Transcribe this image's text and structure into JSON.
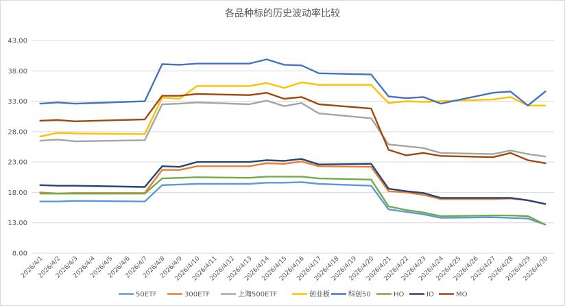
{
  "chart_data": {
    "type": "line",
    "title": "各品种标的历史波动率比较",
    "xlabel": "",
    "ylabel": "",
    "ylim": [
      8,
      43
    ],
    "yticks": [
      "8.00",
      "13.00",
      "18.00",
      "23.00",
      "28.00",
      "33.00",
      "38.00",
      "43.00"
    ],
    "grid": true,
    "legend_position": "bottom",
    "x": [
      "2026/4/1",
      "2026/4/2",
      "2026/4/3",
      "2026/4/4",
      "2026/4/5",
      "2026/4/6",
      "2026/4/7",
      "2026/4/8",
      "2026/4/9",
      "2026/4/10",
      "2026/4/11",
      "2026/4/12",
      "2026/4/13",
      "2026/4/14",
      "2026/4/15",
      "2026/4/16",
      "2026/4/17",
      "2026/4/18",
      "2026/4/19",
      "2026/4/20",
      "2026/4/21",
      "2026/4/22",
      "2026/4/23",
      "2026/4/24",
      "2026/4/25",
      "2026/4/26",
      "2026/4/27",
      "2026/4/28",
      "2026/4/29",
      "2026/4/30"
    ],
    "series": [
      {
        "name": "50ETF",
        "color": "#5b9bd5",
        "values": [
          16.5,
          16.5,
          16.6,
          null,
          null,
          null,
          16.5,
          19.2,
          19.3,
          19.4,
          null,
          null,
          19.4,
          19.6,
          19.6,
          19.7,
          19.4,
          null,
          null,
          19.1,
          15.2,
          14.8,
          14.4,
          13.8,
          null,
          null,
          13.9,
          13.8,
          13.7,
          12.7
        ]
      },
      {
        "name": "300ETF",
        "color": "#ed7d31",
        "values": [
          18.0,
          17.8,
          17.9,
          null,
          null,
          null,
          17.9,
          21.7,
          21.7,
          22.3,
          null,
          null,
          22.3,
          22.8,
          22.7,
          23.1,
          22.3,
          null,
          null,
          22.2,
          18.2,
          18.0,
          17.6,
          16.9,
          null,
          null,
          16.9,
          17.0,
          16.7,
          16.1
        ]
      },
      {
        "name": "上海500ETF",
        "color": "#a5a5a5",
        "values": [
          26.5,
          26.7,
          26.4,
          null,
          null,
          null,
          26.6,
          32.5,
          32.6,
          32.8,
          null,
          null,
          32.5,
          33.1,
          32.2,
          32.7,
          31.0,
          null,
          null,
          30.2,
          25.9,
          25.6,
          25.3,
          24.5,
          null,
          null,
          24.3,
          24.9,
          24.3,
          23.9
        ]
      },
      {
        "name": "创业板",
        "color": "#ffc000",
        "values": [
          27.2,
          27.8,
          27.7,
          null,
          null,
          null,
          27.6,
          33.6,
          33.4,
          35.5,
          null,
          null,
          35.5,
          36.0,
          35.2,
          36.1,
          35.7,
          null,
          null,
          35.7,
          32.7,
          33.0,
          32.9,
          33.0,
          null,
          null,
          33.3,
          33.7,
          32.3,
          32.3
        ]
      },
      {
        "name": "科创50",
        "color": "#4472c4",
        "values": [
          32.6,
          32.8,
          32.6,
          null,
          null,
          null,
          33.0,
          39.1,
          39.0,
          39.2,
          null,
          null,
          39.2,
          39.9,
          39.0,
          38.9,
          37.6,
          null,
          null,
          37.4,
          33.8,
          33.5,
          33.7,
          32.6,
          null,
          null,
          34.4,
          34.6,
          32.3,
          34.6
        ]
      },
      {
        "name": "HO",
        "color": "#70ad47",
        "values": [
          17.8,
          17.8,
          17.8,
          null,
          null,
          null,
          17.8,
          20.3,
          20.4,
          20.5,
          null,
          null,
          20.4,
          20.6,
          20.6,
          20.6,
          20.3,
          null,
          null,
          20.1,
          15.7,
          15.1,
          14.7,
          14.1,
          null,
          null,
          14.2,
          14.2,
          14.1,
          12.7
        ]
      },
      {
        "name": "IO",
        "color": "#264478",
        "values": [
          19.2,
          19.1,
          19.1,
          null,
          null,
          null,
          18.9,
          22.3,
          22.2,
          23.0,
          null,
          null,
          23.0,
          23.3,
          23.2,
          23.5,
          22.6,
          null,
          null,
          22.7,
          18.6,
          18.2,
          17.9,
          17.1,
          null,
          null,
          17.1,
          17.1,
          16.7,
          16.1
        ]
      },
      {
        "name": "MO",
        "color": "#9e480e",
        "values": [
          29.8,
          29.9,
          29.7,
          null,
          null,
          null,
          30.0,
          33.9,
          33.9,
          34.2,
          null,
          null,
          34.0,
          34.4,
          33.4,
          33.7,
          32.5,
          null,
          null,
          31.8,
          25.0,
          24.1,
          24.5,
          24.0,
          null,
          null,
          23.8,
          24.5,
          23.3,
          22.8
        ]
      }
    ]
  }
}
